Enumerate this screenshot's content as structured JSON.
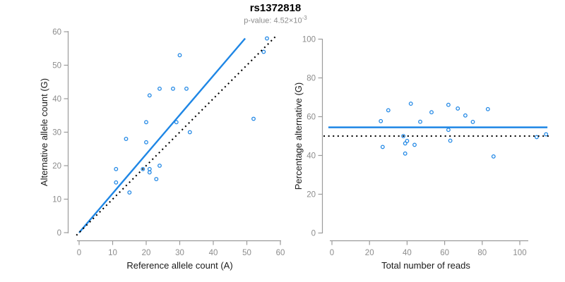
{
  "header": {
    "title": "rs1372818",
    "subtitle_text": "p-value: 4.52×10",
    "subtitle_sup": "-3"
  },
  "colors": {
    "point": "#1E86E5",
    "fit_line": "#1E86E5",
    "identity_line": "#000000",
    "axis": "#9B9B9B",
    "tick_label": "#8C8C8C",
    "axis_title": "#1A1A1A",
    "title": "#000000",
    "subtitle": "#8C8C8C",
    "background": "#FFFFFF"
  },
  "chart_data": [
    {
      "type": "scatter",
      "panel": "left",
      "xlabel": "Reference allele count (A)",
      "ylabel": "Alternative allele count (G)",
      "xlim": [
        0,
        60
      ],
      "ylim": [
        0,
        60
      ],
      "xticks": [
        0,
        10,
        20,
        30,
        40,
        50,
        60
      ],
      "yticks": [
        0,
        10,
        20,
        30,
        40,
        50,
        60
      ],
      "grid": false,
      "points": [
        [
          11,
          15
        ],
        [
          11,
          19
        ],
        [
          14,
          28
        ],
        [
          15,
          12
        ],
        [
          19,
          19
        ],
        [
          20,
          27
        ],
        [
          20,
          33
        ],
        [
          21,
          18
        ],
        [
          21,
          19
        ],
        [
          21,
          41
        ],
        [
          23,
          16
        ],
        [
          24,
          20
        ],
        [
          24,
          43
        ],
        [
          28,
          43
        ],
        [
          29,
          33
        ],
        [
          30,
          53
        ],
        [
          32,
          43
        ],
        [
          33,
          30
        ],
        [
          52,
          34
        ],
        [
          55,
          54
        ],
        [
          56,
          58
        ]
      ],
      "fit_line": {
        "x1": 0,
        "y1": 0,
        "x2": 49.5,
        "y2": 58,
        "style": "solid"
      },
      "identity_line": {
        "x1": -0.8,
        "y1": -0.8,
        "x2": 58.6,
        "y2": 58.6,
        "style": "dotted"
      }
    },
    {
      "type": "scatter",
      "panel": "right",
      "xlabel": "Total number of reads",
      "ylabel": "Percentage alternative (G)",
      "xlim": [
        0,
        115
      ],
      "ylim": [
        0,
        100
      ],
      "xticks": [
        0,
        20,
        40,
        60,
        80,
        100
      ],
      "yticks": [
        0,
        20,
        40,
        60,
        80,
        100
      ],
      "grid": false,
      "points": [
        [
          26,
          57.7
        ],
        [
          27,
          44.4
        ],
        [
          30,
          63.3
        ],
        [
          38,
          50.0
        ],
        [
          39,
          46.2
        ],
        [
          39,
          41.0
        ],
        [
          40,
          47.5
        ],
        [
          42,
          66.7
        ],
        [
          44,
          45.5
        ],
        [
          47,
          57.4
        ],
        [
          53,
          62.3
        ],
        [
          62,
          53.2
        ],
        [
          62,
          66.1
        ],
        [
          63,
          47.6
        ],
        [
          67,
          64.2
        ],
        [
          71,
          60.6
        ],
        [
          75,
          57.3
        ],
        [
          83,
          63.9
        ],
        [
          86,
          39.5
        ],
        [
          109,
          49.5
        ],
        [
          114,
          50.9
        ]
      ],
      "mean_line": {
        "y": 54.5,
        "style": "solid"
      },
      "null_line": {
        "y": 50,
        "style": "dotted"
      }
    }
  ]
}
